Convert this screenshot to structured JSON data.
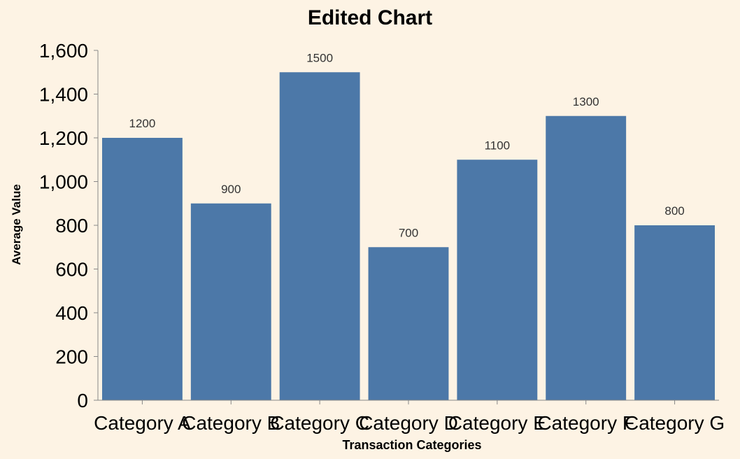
{
  "background_color": "#fdf3e4",
  "chart_data": {
    "type": "bar",
    "title": "Edited Chart",
    "xlabel": "Transaction Categories",
    "ylabel": "Average Value",
    "categories": [
      "Category A",
      "Category B",
      "Category C",
      "Category D",
      "Category E",
      "Category F",
      "Category G"
    ],
    "values": [
      1200,
      900,
      1500,
      700,
      1100,
      1300,
      800
    ],
    "data_labels": [
      "1200",
      "900",
      "1500",
      "700",
      "1100",
      "1300",
      "800"
    ],
    "y_ticks": [
      0,
      200,
      400,
      600,
      800,
      1000,
      1200,
      1400,
      1600
    ],
    "y_tick_labels": [
      "0",
      "200",
      "400",
      "600",
      "800",
      "1,000",
      "1,200",
      "1,400",
      "1,600"
    ],
    "ylim": [
      0,
      1600
    ],
    "grid": false,
    "legend": "none",
    "bar_color": "#4c78a8",
    "axis_color": "#888888",
    "text_color": "#000000",
    "label_color": "#333333"
  }
}
